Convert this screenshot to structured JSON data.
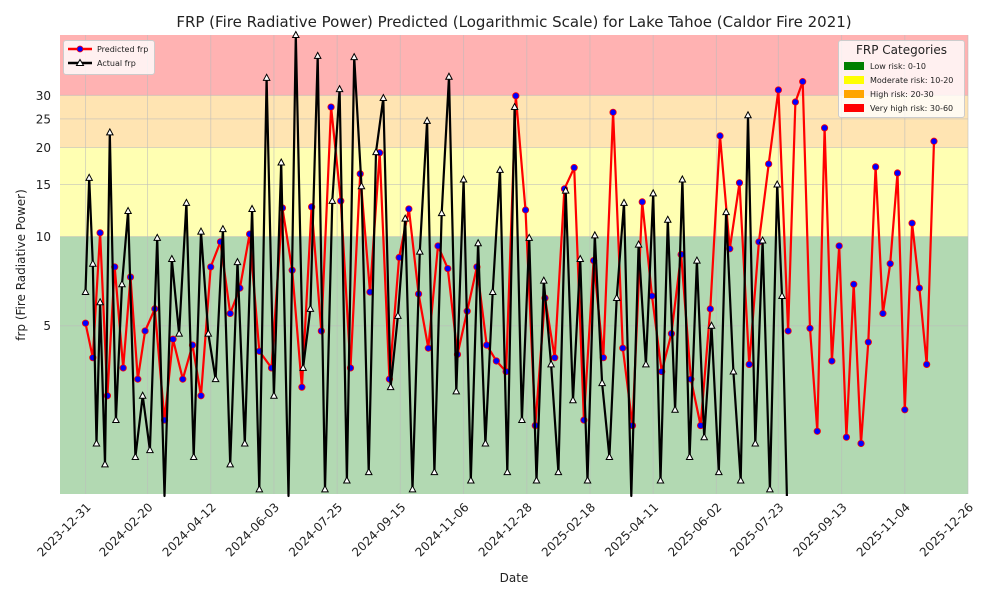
{
  "chart_data": {
    "type": "line",
    "title": "FRP (Fire Radiative Power) Predicted (Logarithmic Scale) for Lake Tahoe (Caldor Fire 2021)",
    "xlabel": "Date",
    "ylabel": "frp (Fire Radiative Power)",
    "y_scale": "log",
    "ylim": [
      1.35,
      48
    ],
    "xlim": [
      "2023-12-10",
      "2025-12-26"
    ],
    "x_ticks": [
      "2023-12-31",
      "2024-02-20",
      "2024-04-12",
      "2024-06-03",
      "2024-07-25",
      "2024-09-15",
      "2024-11-06",
      "2024-12-28",
      "2025-02-18",
      "2025-04-11",
      "2025-06-02",
      "2025-07-23",
      "2025-09-13",
      "2025-11-04",
      "2025-12-26"
    ],
    "y_ticks": [
      5,
      10,
      15,
      20,
      25,
      30
    ],
    "grid": true,
    "bands": [
      {
        "label": "Low risk: 0-10",
        "from": 0,
        "to": 10,
        "color": "#008000"
      },
      {
        "label": "Moderate risk: 10-20",
        "from": 10,
        "to": 20,
        "color": "#ffff00"
      },
      {
        "label": "High risk: 20-30",
        "from": 20,
        "to": 30,
        "color": "#ffa500"
      },
      {
        "label": "Very high risk: 30-60",
        "from": 30,
        "to": 60,
        "color": "#ff0000"
      }
    ],
    "band_legend_title": "FRP Categories",
    "band_legend_placement": "top-right",
    "series_legend_placement": "top-left",
    "series": [
      {
        "name": "Predicted frp",
        "color": "#ff0000",
        "marker_color": "#0000ff",
        "marker": "circle",
        "x": [
          "2023-12-31",
          "2024-01-06",
          "2024-01-12",
          "2024-01-18",
          "2024-01-24",
          "2024-01-31",
          "2024-02-06",
          "2024-02-12",
          "2024-02-18",
          "2024-02-26",
          "2024-03-05",
          "2024-03-12",
          "2024-03-20",
          "2024-03-28",
          "2024-04-04",
          "2024-04-12",
          "2024-04-20",
          "2024-04-28",
          "2024-05-06",
          "2024-05-14",
          "2024-05-22",
          "2024-06-01",
          "2024-06-10",
          "2024-06-18",
          "2024-06-26",
          "2024-07-04",
          "2024-07-12",
          "2024-07-20",
          "2024-07-28",
          "2024-08-05",
          "2024-08-13",
          "2024-08-21",
          "2024-08-29",
          "2024-09-06",
          "2024-09-14",
          "2024-09-22",
          "2024-09-30",
          "2024-10-08",
          "2024-10-16",
          "2024-10-24",
          "2024-11-01",
          "2024-11-09",
          "2024-11-17",
          "2024-11-25",
          "2024-12-03",
          "2024-12-11",
          "2024-12-19",
          "2024-12-27",
          "2025-01-04",
          "2025-01-12",
          "2025-01-20",
          "2025-01-28",
          "2025-02-05",
          "2025-02-13",
          "2025-02-21",
          "2025-03-01",
          "2025-03-09",
          "2025-03-17",
          "2025-03-25",
          "2025-04-02",
          "2025-04-10",
          "2025-04-18",
          "2025-04-26",
          "2025-05-04",
          "2025-05-12",
          "2025-05-20",
          "2025-05-28",
          "2025-06-05",
          "2025-06-13",
          "2025-06-21",
          "2025-06-29",
          "2025-07-07",
          "2025-07-15",
          "2025-07-23",
          "2025-07-31",
          "2025-08-06",
          "2025-08-12",
          "2025-08-18",
          "2025-08-24",
          "2025-08-30",
          "2025-09-05",
          "2025-09-11",
          "2025-09-17",
          "2025-09-23",
          "2025-09-29",
          "2025-10-05",
          "2025-10-11",
          "2025-10-17",
          "2025-10-23",
          "2025-10-29",
          "2025-11-04",
          "2025-11-10",
          "2025-11-16",
          "2025-11-22",
          "2025-11-28"
        ],
        "y": [
          5.1,
          3.9,
          10.3,
          2.9,
          7.9,
          3.6,
          7.3,
          3.3,
          4.8,
          5.7,
          2.4,
          4.5,
          3.3,
          4.3,
          2.9,
          7.9,
          9.6,
          5.5,
          6.7,
          10.2,
          4.1,
          3.6,
          12.5,
          7.7,
          3.1,
          12.6,
          4.8,
          27.4,
          13.2,
          3.6,
          16.3,
          6.5,
          19.2,
          3.3,
          8.5,
          12.4,
          6.4,
          4.2,
          9.3,
          7.8,
          4.0,
          5.6,
          7.9,
          4.3,
          3.8,
          3.5,
          29.9,
          12.3,
          2.3,
          6.2,
          3.9,
          14.5,
          17.1,
          2.4,
          8.3,
          3.9,
          26.3,
          4.2,
          2.3,
          13.1,
          6.3,
          3.5,
          4.7,
          8.7,
          3.3,
          2.3,
          5.7,
          21.9,
          9.1,
          15.2,
          3.7,
          9.6,
          17.6,
          31.3,
          4.8,
          28.5,
          33.4,
          4.9,
          2.2,
          23.3,
          3.8,
          9.3,
          2.1,
          6.9,
          2.0,
          4.4,
          17.2,
          5.5,
          8.1,
          16.4,
          2.6,
          11.1,
          6.7,
          3.7,
          21.0
        ]
      },
      {
        "name": "Actual frp",
        "color": "#000000",
        "marker_color": "#000000",
        "marker": "triangle",
        "x": [
          "2023-12-31",
          "2024-01-03",
          "2024-01-06",
          "2024-01-09",
          "2024-01-12",
          "2024-01-16",
          "2024-01-20",
          "2024-01-25",
          "2024-01-30",
          "2024-02-04",
          "2024-02-10",
          "2024-02-16",
          "2024-02-22",
          "2024-02-28",
          "2024-03-05",
          "2024-03-11",
          "2024-03-17",
          "2024-03-23",
          "2024-03-29",
          "2024-04-04",
          "2024-04-10",
          "2024-04-16",
          "2024-04-22",
          "2024-04-28",
          "2024-05-04",
          "2024-05-10",
          "2024-05-16",
          "2024-05-22",
          "2024-05-28",
          "2024-06-03",
          "2024-06-09",
          "2024-06-15",
          "2024-06-21",
          "2024-06-27",
          "2024-07-03",
          "2024-07-09",
          "2024-07-15",
          "2024-07-21",
          "2024-07-27",
          "2024-08-02",
          "2024-08-08",
          "2024-08-14",
          "2024-08-20",
          "2024-08-26",
          "2024-09-01",
          "2024-09-07",
          "2024-09-13",
          "2024-09-19",
          "2024-09-25",
          "2024-10-01",
          "2024-10-07",
          "2024-10-13",
          "2024-10-19",
          "2024-10-25",
          "2024-10-31",
          "2024-11-06",
          "2024-11-12",
          "2024-11-18",
          "2024-11-24",
          "2024-11-30",
          "2024-12-06",
          "2024-12-12",
          "2024-12-18",
          "2024-12-24",
          "2024-12-30",
          "2025-01-05",
          "2025-01-11",
          "2025-01-17",
          "2025-01-23",
          "2025-01-29",
          "2025-02-04",
          "2025-02-10",
          "2025-02-16",
          "2025-02-22",
          "2025-02-28",
          "2025-03-06",
          "2025-03-12",
          "2025-03-18",
          "2025-03-24",
          "2025-03-30",
          "2025-04-05",
          "2025-04-11",
          "2025-04-17",
          "2025-04-23",
          "2025-04-29",
          "2025-05-05",
          "2025-05-11",
          "2025-05-17",
          "2025-05-23",
          "2025-05-29",
          "2025-06-04",
          "2025-06-10",
          "2025-06-16",
          "2025-06-22",
          "2025-06-28",
          "2025-07-04",
          "2025-07-10",
          "2025-07-16",
          "2025-07-22",
          "2025-07-26",
          "2025-07-30"
        ],
        "y": [
          6.5,
          15.8,
          8.1,
          2.0,
          6.0,
          1.7,
          22.5,
          2.4,
          6.9,
          12.2,
          1.8,
          2.9,
          1.9,
          9.9,
          1.3,
          8.4,
          4.7,
          13.0,
          1.8,
          10.4,
          4.7,
          3.3,
          10.6,
          1.7,
          8.2,
          2.0,
          12.4,
          1.4,
          34.4,
          2.9,
          17.8,
          1.3,
          48.0,
          3.6,
          5.7,
          40.8,
          1.4,
          13.2,
          31.5,
          1.5,
          40.4,
          14.8,
          1.6,
          19.3,
          29.4,
          3.1,
          5.4,
          11.5,
          1.4,
          8.9,
          24.6,
          1.6,
          12.0,
          34.7,
          3.0,
          15.6,
          1.5,
          9.5,
          2.0,
          6.5,
          16.8,
          1.6,
          27.4,
          2.4,
          9.9,
          1.5,
          7.1,
          3.7,
          1.6,
          14.3,
          2.8,
          8.4,
          1.5,
          10.1,
          3.2,
          1.8,
          6.2,
          13.0,
          1.3,
          9.4,
          3.7,
          14.0,
          1.5,
          11.4,
          2.6,
          15.6,
          1.8,
          8.3,
          2.1,
          5.0,
          1.6,
          12.1,
          3.5,
          1.5,
          25.7,
          2.0,
          9.7,
          1.4,
          15.0,
          6.3,
          1.3
        ]
      }
    ]
  }
}
